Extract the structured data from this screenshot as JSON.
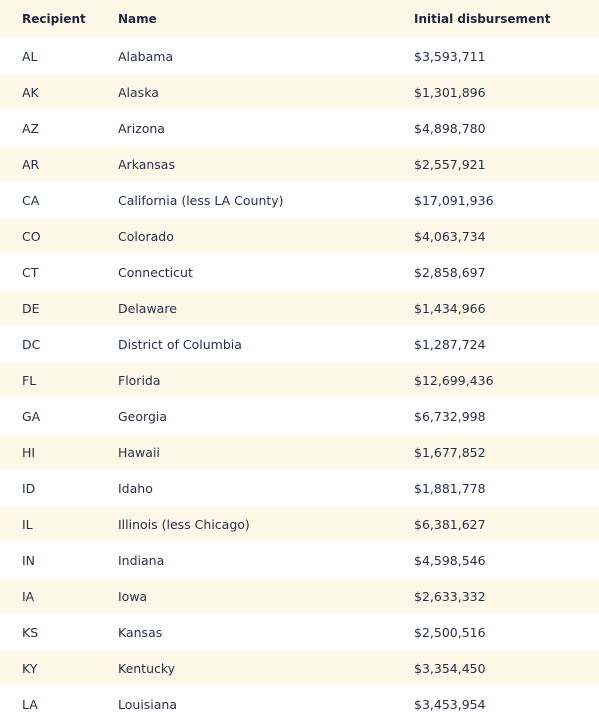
{
  "table": {
    "columns": [
      "Recipient",
      "Name",
      "Initial disbursement"
    ],
    "rows": [
      [
        "AL",
        "Alabama",
        "$3,593,711"
      ],
      [
        "AK",
        "Alaska",
        "$1,301,896"
      ],
      [
        "AZ",
        "Arizona",
        "$4,898,780"
      ],
      [
        "AR",
        "Arkansas",
        "$2,557,921"
      ],
      [
        "CA",
        "California (less LA County)",
        "$17,091,936"
      ],
      [
        "CO",
        "Colorado",
        "$4,063,734"
      ],
      [
        "CT",
        "Connecticut",
        "$2,858,697"
      ],
      [
        "DE",
        "Delaware",
        "$1,434,966"
      ],
      [
        "DC",
        "District of Columbia",
        "$1,287,724"
      ],
      [
        "FL",
        "Florida",
        "$12,699,436"
      ],
      [
        "GA",
        "Georgia",
        "$6,732,998"
      ],
      [
        "HI",
        "Hawaii",
        "$1,677,852"
      ],
      [
        "ID",
        "Idaho",
        "$1,881,778"
      ],
      [
        "IL",
        "Illinois (less Chicago)",
        "$6,381,627"
      ],
      [
        "IN",
        "Indiana",
        "$4,598,546"
      ],
      [
        "IA",
        "Iowa",
        "$2,633,332"
      ],
      [
        "KS",
        "Kansas",
        "$2,500,516"
      ],
      [
        "KY",
        "Kentucky",
        "$3,354,450"
      ],
      [
        "LA",
        "Louisiana",
        "$3,453,954"
      ]
    ]
  }
}
